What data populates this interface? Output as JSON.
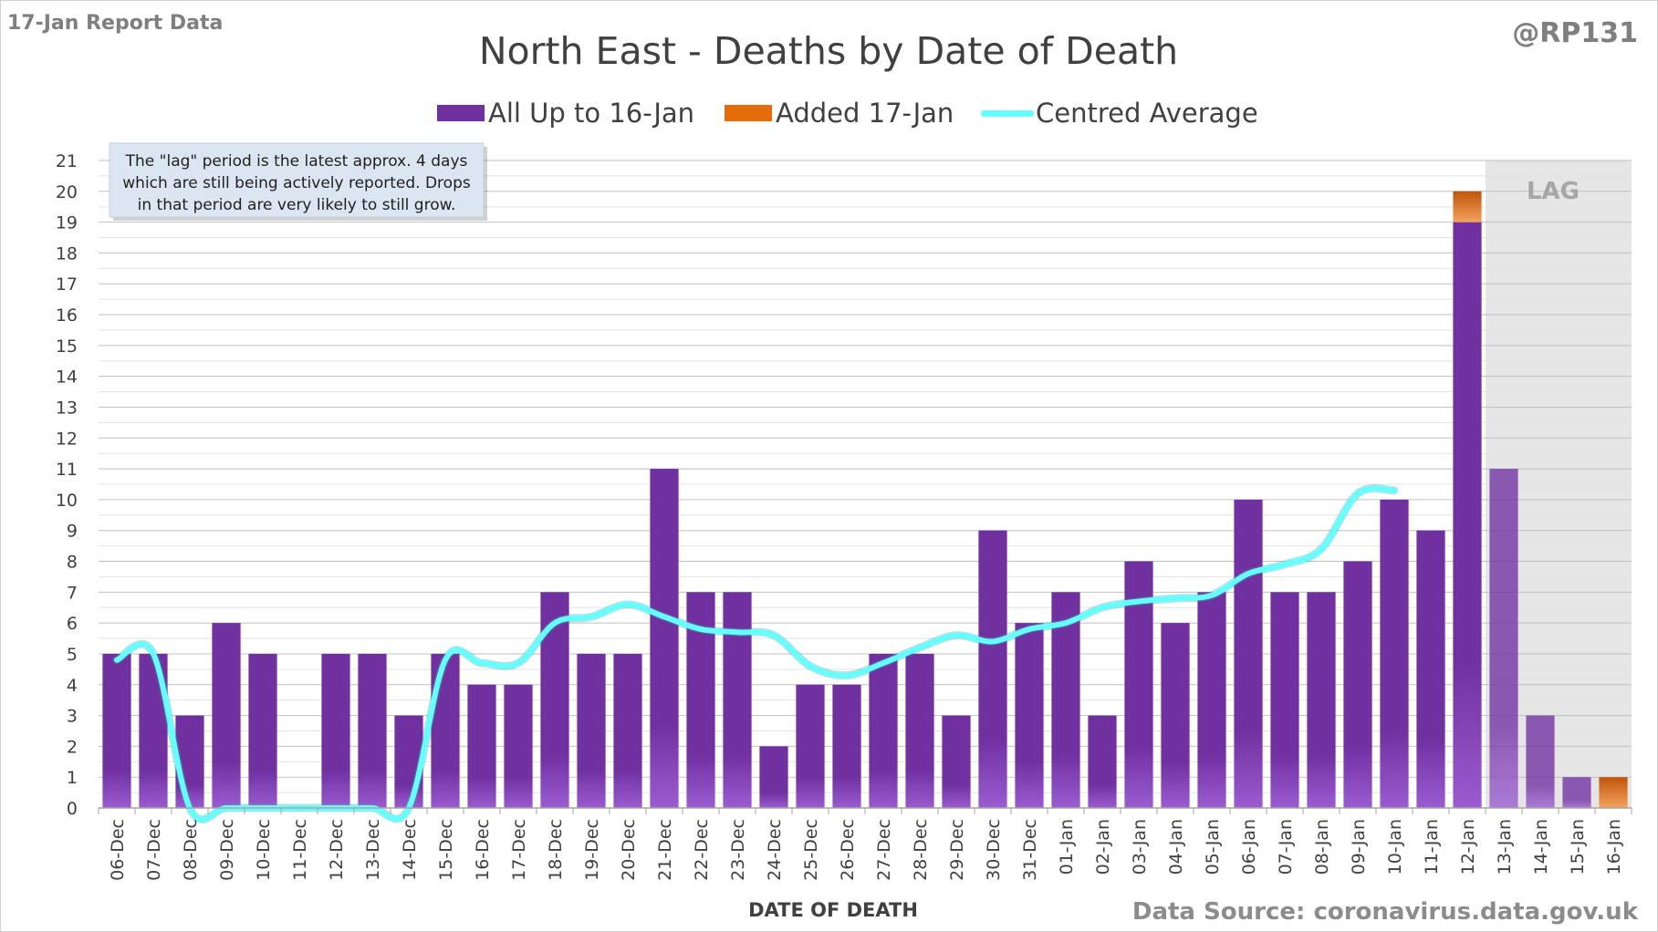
{
  "report_tag": "17-Jan Report Data",
  "handle": "@RP131",
  "source": "Data Source: coronavirus.data.gov.uk",
  "note_lines": [
    "The \"lag\" period is the latest approx. 4 days",
    "which are still being actively reported.  Drops",
    "in that period are very likely to still grow."
  ],
  "lag_label": "LAG",
  "colors": {
    "bar": "#7030a0",
    "bar_light": "#9b5cd0",
    "added": "#e46c0a",
    "average": "#66ffff",
    "lag_shade": "#e6e6e6",
    "grid": "#d9d9d9"
  },
  "chart_data": {
    "type": "bar",
    "title": "North East - Deaths by Date of Death",
    "xlabel": "DATE OF DEATH",
    "ylabel": "",
    "ylim": [
      0,
      21
    ],
    "yticks": [
      0,
      1,
      2,
      3,
      4,
      5,
      6,
      7,
      8,
      9,
      10,
      11,
      12,
      13,
      14,
      15,
      16,
      17,
      18,
      19,
      20,
      21
    ],
    "grid": true,
    "legend_position": "top",
    "categories": [
      "06-Dec",
      "07-Dec",
      "08-Dec",
      "09-Dec",
      "10-Dec",
      "11-Dec",
      "12-Dec",
      "13-Dec",
      "14-Dec",
      "15-Dec",
      "16-Dec",
      "17-Dec",
      "18-Dec",
      "19-Dec",
      "20-Dec",
      "21-Dec",
      "22-Dec",
      "23-Dec",
      "24-Dec",
      "25-Dec",
      "26-Dec",
      "27-Dec",
      "28-Dec",
      "29-Dec",
      "30-Dec",
      "31-Dec",
      "01-Jan",
      "02-Jan",
      "03-Jan",
      "04-Jan",
      "05-Jan",
      "06-Jan",
      "07-Jan",
      "08-Jan",
      "09-Jan",
      "10-Jan",
      "11-Jan",
      "12-Jan",
      "13-Jan",
      "14-Jan",
      "15-Jan",
      "16-Jan"
    ],
    "lag_categories": [
      "13-Jan",
      "14-Jan",
      "15-Jan",
      "16-Jan"
    ],
    "series": [
      {
        "name": "All Up to 16-Jan",
        "kind": "bar",
        "values": [
          5,
          5,
          3,
          6,
          5,
          0,
          5,
          5,
          3,
          5,
          4,
          4,
          7,
          5,
          5,
          11,
          7,
          7,
          2,
          4,
          4,
          5,
          5,
          3,
          9,
          6,
          7,
          3,
          8,
          6,
          7,
          10,
          7,
          7,
          8,
          10,
          9,
          19,
          11,
          3,
          1,
          0
        ]
      },
      {
        "name": "Added 17-Jan",
        "kind": "bar-stacked",
        "values": [
          0,
          0,
          0,
          0,
          0,
          0,
          0,
          0,
          0,
          0,
          0,
          0,
          0,
          0,
          0,
          0,
          0,
          0,
          0,
          0,
          0,
          0,
          0,
          0,
          0,
          0,
          0,
          0,
          0,
          0,
          0,
          0,
          0,
          0,
          0,
          0,
          0,
          1,
          0,
          0,
          0,
          1
        ]
      },
      {
        "name": "Centred Average",
        "kind": "line",
        "values": [
          4.8,
          5,
          0,
          0,
          0,
          0,
          0,
          0,
          0,
          4.8,
          4.7,
          4.7,
          6,
          6.2,
          6.6,
          6.2,
          5.8,
          5.7,
          5.6,
          4.6,
          4.3,
          4.7,
          5.2,
          5.6,
          5.4,
          5.8,
          6,
          6.5,
          6.7,
          6.8,
          6.9,
          7.6,
          7.9,
          8.4,
          10.2,
          10.3,
          null,
          null,
          null,
          null,
          null,
          null
        ]
      }
    ]
  }
}
